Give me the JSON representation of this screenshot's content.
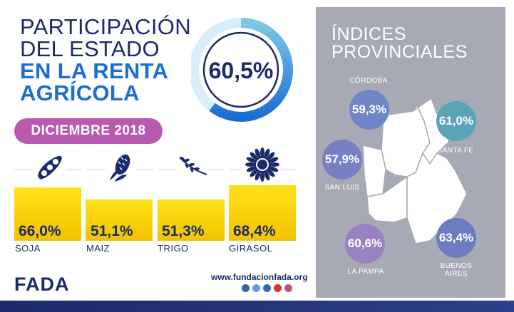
{
  "title": {
    "line1": "PARTICIPACIÓN",
    "line2": "DEL ESTADO",
    "line3": "EN LA RENTA",
    "line4": "AGRÍCOLA"
  },
  "headline_value": "60,5%",
  "headline_fraction": 0.605,
  "date_label": "DICIEMBRE 2018",
  "crops": [
    {
      "name": "SOJA",
      "value_label": "66,0%",
      "icon": "soybean-icon"
    },
    {
      "name": "MAIZ",
      "value_label": "51,1%",
      "icon": "corn-icon"
    },
    {
      "name": "TRIGO",
      "value_label": "51,3%",
      "icon": "wheat-icon"
    },
    {
      "name": "GIRASOL",
      "value_label": "68,4%",
      "icon": "sunflower-icon"
    }
  ],
  "chart_data": {
    "type": "bar",
    "categories": [
      "SOJA",
      "MAIZ",
      "TRIGO",
      "GIRASOL"
    ],
    "values": [
      66.0,
      51.1,
      51.3,
      68.4
    ],
    "title": "DICIEMBRE 2018",
    "ylim": [
      0,
      70
    ]
  },
  "provinces_panel": {
    "title_line1": "ÍNDICES",
    "title_line2": "PROVINCIALES",
    "provinces": [
      {
        "name": "CÓRDOBA",
        "value": "59,3%",
        "color": "#6f86c6"
      },
      {
        "name": "SANTA FE",
        "value": "61,0%",
        "color": "#5aa3b8"
      },
      {
        "name": "SAN LUIS",
        "value": "57,9%",
        "color": "#7a7fc4"
      },
      {
        "name": "LA PAMPA",
        "value": "60,6%",
        "color": "#9a82c2"
      },
      {
        "name": "BUENOS",
        "name2": "AIRES",
        "value": "63,4%",
        "color": "#6d7cc1"
      }
    ]
  },
  "footer": {
    "brand": "FADA",
    "url": "www.fundacionfada.org"
  },
  "colors": {
    "navy": "#1a2a6b",
    "blue": "#1a6fd6",
    "bar_yellow": "#f6d400",
    "pill_purple": "#b85ab0",
    "panel_grey": "#a7aab4"
  }
}
